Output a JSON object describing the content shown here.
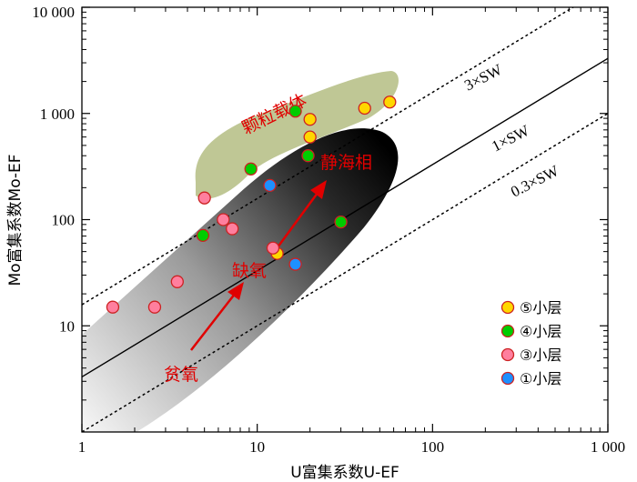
{
  "chart_data": {
    "type": "scatter",
    "x_axis": {
      "label": "U富集系数U-EF",
      "scale": "log",
      "range": [
        1,
        1000
      ],
      "ticks": [
        {
          "value": 1,
          "label": "1"
        },
        {
          "value": 10,
          "label": "10"
        },
        {
          "value": 100,
          "label": "100"
        },
        {
          "value": 1000,
          "label": "1 000"
        }
      ]
    },
    "y_axis": {
      "label": "Mo富集系数Mo-EF",
      "scale": "log",
      "range": [
        1,
        10000
      ],
      "ticks": [
        {
          "value": 10,
          "label": "10"
        },
        {
          "value": 100,
          "label": "100"
        },
        {
          "value": 1000,
          "label": "1 000"
        },
        {
          "value": 10000,
          "label": "10 000"
        }
      ]
    },
    "reference_lines": [
      {
        "label": "3×SW",
        "ratio": 15.8,
        "style": "dotted"
      },
      {
        "label": "1×SW",
        "ratio": 3.3,
        "style": "solid"
      },
      {
        "label": "0.3×SW",
        "ratio": 1.0,
        "style": "dotted"
      }
    ],
    "annotations": [
      {
        "text": "颗粒载体",
        "color": "#e00000"
      },
      {
        "text": "静海相",
        "color": "#e00000"
      },
      {
        "text": "缺氧",
        "color": "#e00000"
      },
      {
        "text": "贫氧",
        "color": "#e00000"
      }
    ],
    "legend_position": "bottom-right",
    "series": [
      {
        "name": "⑤小层",
        "color": "#ffd700",
        "points": [
          [
            20,
            880
          ],
          [
            20,
            600
          ],
          [
            13,
            48
          ],
          [
            41,
            1120
          ],
          [
            57,
            1280
          ]
        ]
      },
      {
        "name": "④小层",
        "color": "#00cc00",
        "points": [
          [
            4.9,
            71
          ],
          [
            9.2,
            300
          ],
          [
            16.5,
            1050
          ],
          [
            19.5,
            400
          ],
          [
            30,
            95
          ]
        ]
      },
      {
        "name": "③小层",
        "color": "#ff7f9e",
        "points": [
          [
            1.5,
            15
          ],
          [
            2.6,
            15
          ],
          [
            3.5,
            26
          ],
          [
            5,
            160
          ],
          [
            6.4,
            100
          ],
          [
            7.2,
            82
          ],
          [
            12.3,
            54
          ]
        ]
      },
      {
        "name": "①小层",
        "color": "#1e90ff",
        "points": [
          [
            11.8,
            210
          ],
          [
            16.5,
            38
          ]
        ]
      }
    ]
  }
}
